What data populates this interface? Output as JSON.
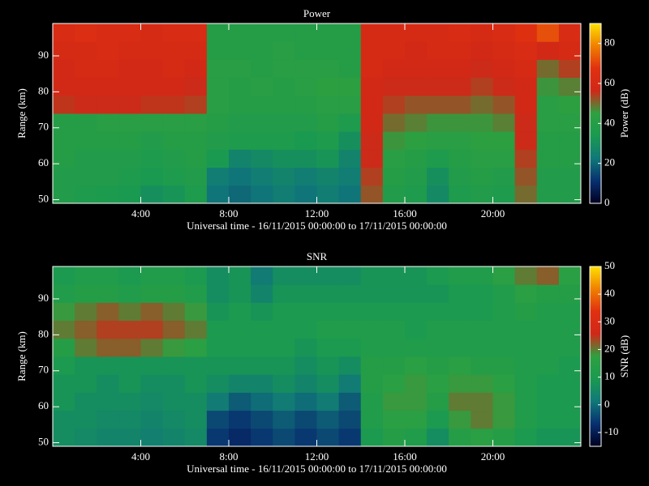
{
  "chart_data": [
    {
      "type": "heatmap",
      "title": "Power",
      "xlabel": "Universal time - 16/11/2015 00:00:00 to 17/11/2015 00:00:00",
      "ylabel": "Range (km)",
      "zlabel": "Power (dB)",
      "x": [
        0.5,
        1.5,
        2.5,
        3.5,
        4.5,
        5.5,
        6.5,
        7.5,
        8.5,
        9.5,
        10.5,
        11.5,
        12.5,
        13.5,
        14.5,
        15.5,
        16.5,
        17.5,
        18.5,
        19.5,
        20.5,
        21.5,
        22.5,
        23.5
      ],
      "y": [
        51.5,
        56.5,
        61.5,
        66.5,
        71.5,
        76.5,
        81.5,
        86.5,
        91.5,
        96.5
      ],
      "values": [
        [
          38,
          38,
          40,
          40,
          40,
          55,
          58,
          58,
          60,
          62
        ],
        [
          36,
          38,
          38,
          40,
          40,
          56,
          58,
          60,
          60,
          64
        ],
        [
          35,
          38,
          38,
          40,
          42,
          56,
          58,
          60,
          62,
          62
        ],
        [
          34,
          36,
          38,
          40,
          42,
          56,
          58,
          58,
          60,
          62
        ],
        [
          30,
          34,
          36,
          38,
          42,
          55,
          58,
          58,
          60,
          60
        ],
        [
          32,
          36,
          38,
          40,
          42,
          55,
          58,
          60,
          60,
          62
        ],
        [
          36,
          38,
          40,
          40,
          42,
          54,
          56,
          58,
          60,
          62
        ],
        [
          22,
          24,
          34,
          38,
          40,
          42,
          42,
          42,
          40,
          40
        ],
        [
          20,
          22,
          26,
          36,
          38,
          40,
          40,
          42,
          40,
          40
        ],
        [
          22,
          24,
          28,
          36,
          38,
          40,
          42,
          40,
          40,
          40
        ],
        [
          24,
          26,
          30,
          36,
          38,
          40,
          40,
          42,
          42,
          40
        ],
        [
          22,
          24,
          30,
          34,
          38,
          40,
          42,
          42,
          40,
          40
        ],
        [
          24,
          26,
          32,
          36,
          40,
          42,
          44,
          42,
          40,
          40
        ],
        [
          22,
          24,
          26,
          30,
          36,
          42,
          44,
          40,
          40,
          40
        ],
        [
          52,
          54,
          56,
          56,
          58,
          58,
          58,
          60,
          60,
          60
        ],
        [
          38,
          40,
          42,
          46,
          50,
          54,
          56,
          58,
          60,
          60
        ],
        [
          36,
          38,
          40,
          44,
          48,
          52,
          56,
          58,
          58,
          60
        ],
        [
          28,
          30,
          36,
          42,
          46,
          52,
          56,
          58,
          60,
          60
        ],
        [
          36,
          38,
          40,
          42,
          46,
          52,
          56,
          58,
          60,
          62
        ],
        [
          38,
          40,
          42,
          44,
          46,
          50,
          54,
          56,
          58,
          60
        ],
        [
          36,
          38,
          42,
          44,
          48,
          52,
          56,
          58,
          60,
          62
        ],
        [
          50,
          52,
          54,
          56,
          56,
          58,
          58,
          60,
          62,
          66
        ],
        [
          38,
          38,
          40,
          40,
          42,
          42,
          46,
          50,
          58,
          72
        ],
        [
          38,
          38,
          40,
          40,
          42,
          44,
          48,
          54,
          60,
          62
        ]
      ],
      "xlim": [
        0,
        24
      ],
      "xticks": [
        {
          "value": 4,
          "label": "4:00"
        },
        {
          "value": 8,
          "label": "8:00"
        },
        {
          "value": 12,
          "label": "12:00"
        },
        {
          "value": 16,
          "label": "16:00"
        },
        {
          "value": 20,
          "label": "20:00"
        }
      ],
      "ylim": [
        49,
        99
      ],
      "yticks": [
        50,
        60,
        70,
        80,
        90
      ],
      "zlim": [
        0,
        90
      ],
      "zticks": [
        0,
        20,
        40,
        60,
        80
      ],
      "colorscale": [
        "#000020",
        "#083070",
        "#107878",
        "#1a9a50",
        "#2ea040",
        "#d02818",
        "#e03010",
        "#f08000",
        "#ffe000"
      ]
    },
    {
      "type": "heatmap",
      "title": "SNR",
      "xlabel": "Universal time - 16/11/2015 00:00:00 to 17/11/2015 00:00:00",
      "ylabel": "Range (km)",
      "zlabel": "SNR (dB)",
      "x": [
        0.5,
        1.5,
        2.5,
        3.5,
        4.5,
        5.5,
        6.5,
        7.5,
        8.5,
        9.5,
        10.5,
        11.5,
        12.5,
        13.5,
        14.5,
        15.5,
        16.5,
        17.5,
        18.5,
        19.5,
        20.5,
        21.5,
        22.5,
        23.5
      ],
      "y": [
        51.5,
        56.5,
        61.5,
        66.5,
        71.5,
        76.5,
        81.5,
        86.5,
        91.5,
        96.5
      ],
      "values": [
        [
          6,
          6,
          8,
          8,
          10,
          14,
          20,
          18,
          12,
          10
        ],
        [
          5,
          6,
          6,
          8,
          8,
          20,
          22,
          20,
          14,
          12
        ],
        [
          4,
          5,
          6,
          6,
          8,
          22,
          24,
          22,
          14,
          12
        ],
        [
          4,
          5,
          6,
          8,
          8,
          22,
          24,
          20,
          12,
          10
        ],
        [
          3,
          4,
          5,
          6,
          8,
          20,
          24,
          22,
          14,
          12
        ],
        [
          4,
          5,
          6,
          6,
          8,
          18,
          22,
          20,
          14,
          12
        ],
        [
          5,
          6,
          6,
          8,
          8,
          16,
          20,
          18,
          12,
          10
        ],
        [
          -6,
          -4,
          2,
          6,
          8,
          10,
          10,
          8,
          6,
          6
        ],
        [
          -8,
          -6,
          -2,
          4,
          8,
          10,
          10,
          10,
          8,
          8
        ],
        [
          -6,
          -4,
          0,
          4,
          8,
          10,
          10,
          8,
          4,
          2
        ],
        [
          -4,
          -2,
          2,
          6,
          8,
          10,
          10,
          10,
          8,
          6
        ],
        [
          -6,
          -4,
          0,
          4,
          6,
          8,
          10,
          10,
          8,
          6
        ],
        [
          -4,
          -2,
          2,
          6,
          8,
          10,
          12,
          10,
          8,
          6
        ],
        [
          -6,
          -4,
          -2,
          2,
          6,
          10,
          12,
          10,
          8,
          6
        ],
        [
          10,
          12,
          12,
          14,
          14,
          12,
          12,
          10,
          8,
          8
        ],
        [
          14,
          16,
          18,
          16,
          14,
          12,
          12,
          10,
          8,
          8
        ],
        [
          12,
          16,
          18,
          18,
          16,
          12,
          10,
          10,
          8,
          8
        ],
        [
          6,
          10,
          14,
          16,
          14,
          12,
          12,
          10,
          8,
          10
        ],
        [
          14,
          18,
          20,
          18,
          16,
          12,
          12,
          10,
          10,
          12
        ],
        [
          16,
          20,
          20,
          18,
          14,
          12,
          12,
          10,
          10,
          12
        ],
        [
          14,
          18,
          18,
          16,
          14,
          12,
          12,
          12,
          12,
          16
        ],
        [
          10,
          12,
          12,
          12,
          12,
          12,
          12,
          14,
          16,
          20
        ],
        [
          8,
          10,
          10,
          10,
          12,
          12,
          12,
          12,
          14,
          22
        ],
        [
          8,
          10,
          10,
          10,
          10,
          12,
          12,
          12,
          14,
          16
        ]
      ],
      "xlim": [
        0,
        24
      ],
      "xticks": [
        {
          "value": 4,
          "label": "4:00"
        },
        {
          "value": 8,
          "label": "8:00"
        },
        {
          "value": 12,
          "label": "12:00"
        },
        {
          "value": 16,
          "label": "16:00"
        },
        {
          "value": 20,
          "label": "20:00"
        }
      ],
      "ylim": [
        49,
        99
      ],
      "yticks": [
        50,
        60,
        70,
        80,
        90
      ],
      "zlim": [
        -15,
        50
      ],
      "zticks": [
        -10,
        0,
        10,
        20,
        30,
        40,
        50
      ],
      "colorscale": [
        "#000020",
        "#083070",
        "#107878",
        "#1a9a50",
        "#2ea040",
        "#d02818",
        "#e03010",
        "#f08000",
        "#ffe000"
      ]
    }
  ]
}
